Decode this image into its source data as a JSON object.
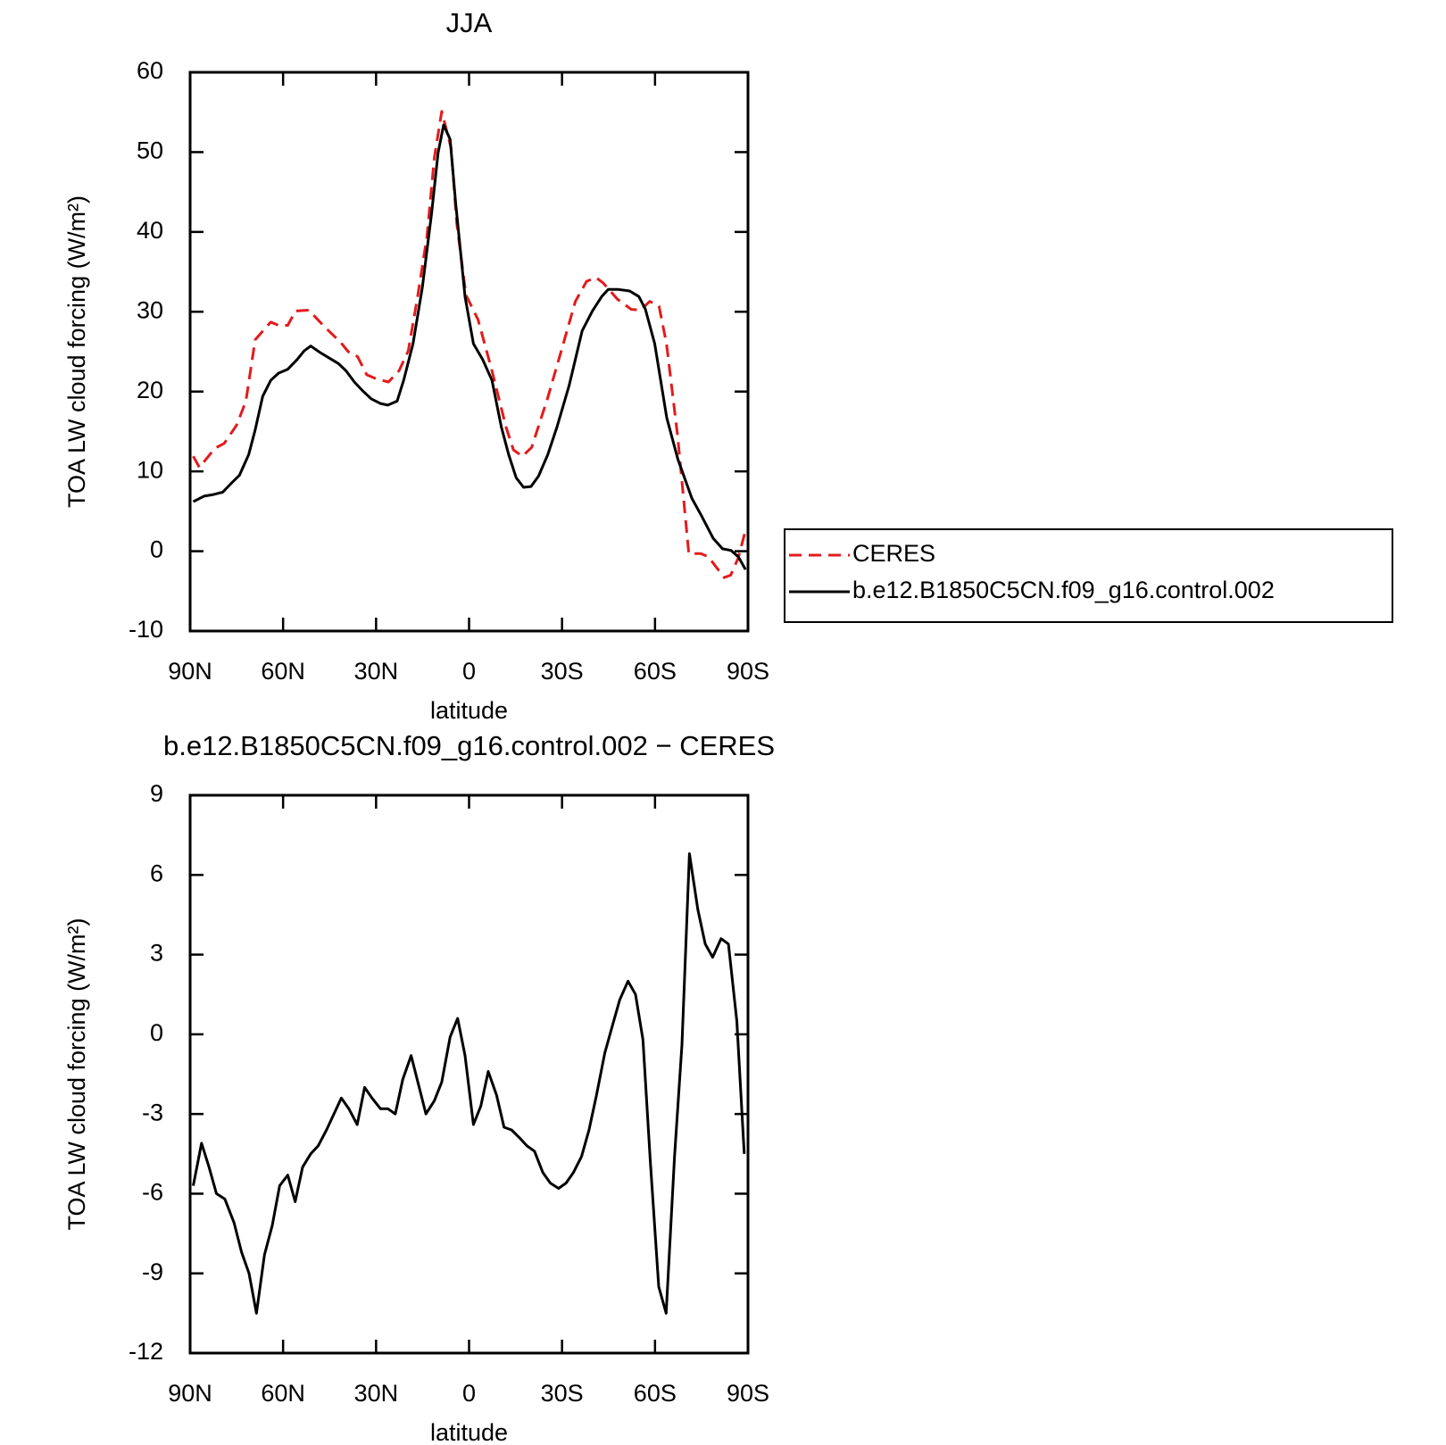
{
  "chart_data": [
    {
      "type": "line",
      "title": "JJA",
      "xlabel": "latitude",
      "ylabel": "TOA LW cloud forcing (W/m²)",
      "xlim": [
        90,
        -90
      ],
      "xticks": [
        {
          "value": 90,
          "label": "90N"
        },
        {
          "value": 60,
          "label": "60N"
        },
        {
          "value": 30,
          "label": "30N"
        },
        0,
        {
          "value": -30,
          "label": "30S"
        },
        {
          "value": -60,
          "label": "60S"
        },
        {
          "value": -90,
          "label": "90S"
        }
      ],
      "ylim": [
        -10,
        60
      ],
      "yticks": [
        -10,
        0,
        10,
        20,
        30,
        40,
        50,
        60
      ],
      "legend": "right",
      "series": [
        {
          "name": "CERES",
          "color": "#e41a1c",
          "dash": true,
          "x": [
            89,
            87,
            82,
            79,
            75,
            72,
            69,
            64,
            61.5,
            58.5,
            56,
            51.7,
            46.6,
            41.5,
            39,
            36,
            33,
            30,
            26,
            22.6,
            19.6,
            16.6,
            13.6,
            11.2,
            8.8,
            5.8,
            4,
            1,
            -2.9,
            -7.4,
            -11.9,
            -14.3,
            -17.2,
            -20.2,
            -25.3,
            -30.4,
            -34.3,
            -37.9,
            -40.9,
            -43.3,
            -47.8,
            -52.3,
            -55.3,
            -58.3,
            -61.3,
            -63.7,
            -67.3,
            -70.9,
            -74.8,
            -77.2,
            -82.3,
            -84.4,
            -86.8,
            -89.2
          ],
          "values": [
            11.9,
            10.5,
            12.9,
            13.5,
            15.8,
            18.8,
            26.5,
            28.7,
            28.3,
            28.3,
            30.1,
            30.2,
            28.1,
            26.2,
            25,
            24.4,
            22.1,
            21.6,
            21.2,
            22.6,
            25.1,
            31.9,
            39.4,
            49.3,
            55.1,
            50.5,
            41.2,
            32.1,
            29,
            22.6,
            15.6,
            12.7,
            11.9,
            13,
            19.1,
            26,
            31.3,
            33.8,
            34.3,
            33.6,
            31.6,
            30.3,
            30.2,
            31.3,
            30.7,
            26,
            14.4,
            -0.3,
            -0.3,
            -0.7,
            -3.3,
            -3,
            -0.9,
            2.6
          ]
        },
        {
          "name": "b.e12.B1850C5CN.f09_g16.control.002",
          "color": "#000000",
          "dash": false,
          "x": [
            89,
            85.5,
            82.5,
            79.5,
            76.5,
            74.1,
            71.1,
            69,
            66.6,
            64,
            61.5,
            58.5,
            55.5,
            53.2,
            51.1,
            48.1,
            45.1,
            42.1,
            39.7,
            37,
            34.6,
            31.6,
            28.6,
            26.2,
            23.2,
            21.1,
            18.1,
            15.1,
            12.1,
            10,
            8.2,
            6.1,
            4.3,
            1.3,
            -1.4,
            -4.4,
            -7.4,
            -10.4,
            -12.8,
            -15.2,
            -17.6,
            -20,
            -22.4,
            -25.4,
            -28.4,
            -32.3,
            -36.5,
            -39.8,
            -42.8,
            -44.9,
            -47.9,
            -51.8,
            -54.8,
            -56.9,
            -59.9,
            -63.8,
            -67.4,
            -71.9,
            -74.9,
            -78.8,
            -81.8,
            -84.5,
            -86.9,
            -89.2
          ],
          "values": [
            6.2,
            6.9,
            7.1,
            7.4,
            8.6,
            9.5,
            12.1,
            15.2,
            19.4,
            21.4,
            22.3,
            22.8,
            24,
            25.1,
            25.7,
            24.9,
            24.2,
            23.5,
            22.6,
            21.2,
            20.2,
            19.1,
            18.5,
            18.3,
            18.8,
            21.4,
            26,
            33,
            42.3,
            49.9,
            53.4,
            51.6,
            43.5,
            31.9,
            26,
            24,
            21.4,
            15.6,
            12.1,
            9.2,
            8,
            8.1,
            9.4,
            12.1,
            15.6,
            20.8,
            27.6,
            30.1,
            31.9,
            32.8,
            32.8,
            32.6,
            31.9,
            30.3,
            26,
            16.7,
            11.5,
            6.6,
            4.5,
            1.6,
            0.3,
            0.1,
            -0.7,
            -2.3
          ]
        }
      ]
    },
    {
      "type": "line",
      "title": "b.e12.B1850C5CN.f09_g16.control.002 − CERES",
      "xlabel": "latitude",
      "ylabel": "TOA LW cloud forcing (W/m²)",
      "xlim": [
        90,
        -90
      ],
      "xticks": [
        {
          "value": 90,
          "label": "90N"
        },
        {
          "value": 60,
          "label": "60N"
        },
        {
          "value": 30,
          "label": "30N"
        },
        0,
        {
          "value": -30,
          "label": "30S"
        },
        {
          "value": -60,
          "label": "60S"
        },
        {
          "value": -90,
          "label": "90S"
        }
      ],
      "ylim": [
        -12,
        9
      ],
      "yticks": [
        -12,
        -9,
        -6,
        -3,
        0,
        3,
        6,
        9
      ],
      "series": [
        {
          "color": "#000000",
          "dash": false,
          "x": [
            89,
            86.3,
            83.9,
            81.5,
            78.8,
            75.8,
            73.4,
            71,
            68.6,
            66,
            63.5,
            61.1,
            58.5,
            56.1,
            53.7,
            51.1,
            48.7,
            46,
            43.6,
            41.2,
            38.8,
            36.1,
            33.7,
            31.3,
            28.6,
            26.2,
            23.8,
            21.4,
            18.7,
            16.3,
            13.9,
            11.2,
            8.8,
            6.1,
            3.7,
            1.3,
            -1.4,
            -3.8,
            -6.2,
            -8.9,
            -11.3,
            -13.7,
            -16.3,
            -18.7,
            -21.1,
            -23.8,
            -26.2,
            -28.9,
            -31.3,
            -33.7,
            -36.3,
            -38.7,
            -41.1,
            -43.8,
            -46.2,
            -48.6,
            -51.3,
            -53.7,
            -56.1,
            -58.5,
            -61.2,
            -63.6,
            -66.3,
            -68.7,
            -71.1,
            -73.8,
            -76.2,
            -78.6,
            -81.3,
            -83.7,
            -86.4,
            -88.8
          ],
          "values": [
            -5.7,
            -4.1,
            -5.0,
            -6.0,
            -6.2,
            -7.1,
            -8.2,
            -9.0,
            -10.5,
            -8.3,
            -7.2,
            -5.7,
            -5.3,
            -6.3,
            -5.0,
            -4.5,
            -4.2,
            -3.6,
            -3.0,
            -2.4,
            -2.8,
            -3.4,
            -2.0,
            -2.4,
            -2.8,
            -2.8,
            -3.0,
            -1.7,
            -0.8,
            -1.9,
            -3.0,
            -2.5,
            -1.8,
            -0.1,
            0.6,
            -0.8,
            -3.4,
            -2.7,
            -1.4,
            -2.3,
            -3.5,
            -3.6,
            -3.9,
            -4.2,
            -4.4,
            -5.2,
            -5.6,
            -5.8,
            -5.6,
            -5.2,
            -4.6,
            -3.6,
            -2.3,
            -0.7,
            0.3,
            1.3,
            2.0,
            1.5,
            -0.2,
            -4.8,
            -9.5,
            -10.5,
            -4.6,
            -0.4,
            6.8,
            4.7,
            3.4,
            2.9,
            3.6,
            3.4,
            0.5,
            -4.5
          ]
        }
      ]
    }
  ]
}
